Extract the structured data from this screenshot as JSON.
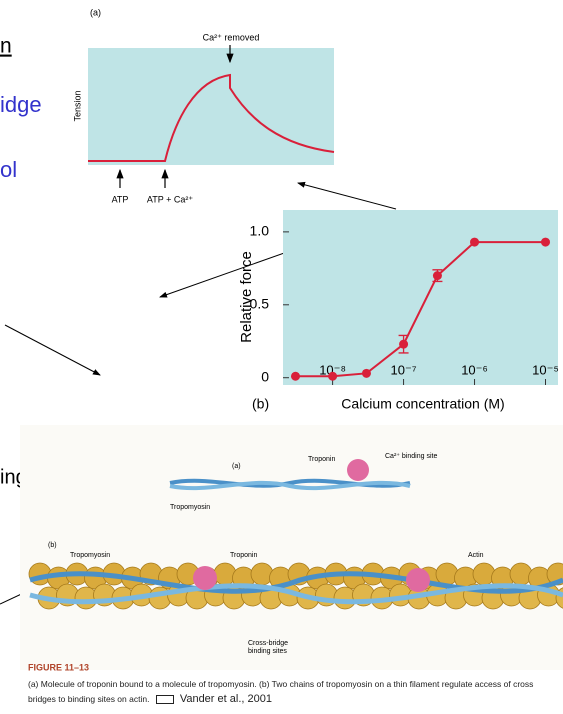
{
  "slide_text": [
    "n",
    "idge",
    "ol",
    "ing"
  ],
  "figure_a": {
    "label": "(a)",
    "annotation": "Ca²⁺ removed",
    "y_label": "Tension",
    "markers": [
      "ATP",
      "ATP + Ca²⁺"
    ]
  },
  "chart_data": {
    "type": "scatter",
    "panel_label": "(b)",
    "x_label": "Calcium concentration (M)",
    "y_label": "Relative force",
    "log_x": true,
    "plot_background": "#bfe4e6",
    "xlim": [
      2e-09,
      1.5e-05
    ],
    "xticks": [
      {
        "value": 1e-08,
        "label": "10⁻⁸"
      },
      {
        "value": 1e-07,
        "label": "10⁻⁷"
      },
      {
        "value": 1e-06,
        "label": "10⁻⁶"
      },
      {
        "value": 1e-05,
        "label": "10⁻⁵"
      }
    ],
    "ylim": [
      -0.05,
      1.15
    ],
    "yticks": [
      0,
      0.5,
      {
        "value": 1,
        "label": "1.0"
      }
    ],
    "series": [
      {
        "color": "#d9203a",
        "x": [
          3e-09,
          1e-08,
          3e-08,
          1e-07,
          3e-07,
          1e-06,
          1e-05
        ],
        "values": [
          0.01,
          0.01,
          0.03,
          0.23,
          0.7,
          0.93,
          0.93
        ],
        "errors": [
          null,
          null,
          null,
          0.06,
          0.04,
          null,
          null
        ]
      }
    ]
  },
  "figure_c": {
    "panel_a": "(a)",
    "troponin_a": "Troponin",
    "binding_site": "Ca²⁺ binding site",
    "tropomyosin_a": "Tropomyosin",
    "panel_b": "(b)",
    "tropomyosin_b": "Tropomyosin",
    "troponin_b": "Troponin",
    "actin": "Actin",
    "cross_bridge": [
      "Cross-bridge",
      "binding sites"
    ],
    "figure_label": "FIGURE 11–13",
    "caption": "(a) Molecule of troponin bound to a molecule of tropomyosin. (b) Two chains of tropomyosin on a thin filament regulate access of cross bridges to binding sites on actin.",
    "credit": "Vander et al., 2001"
  }
}
